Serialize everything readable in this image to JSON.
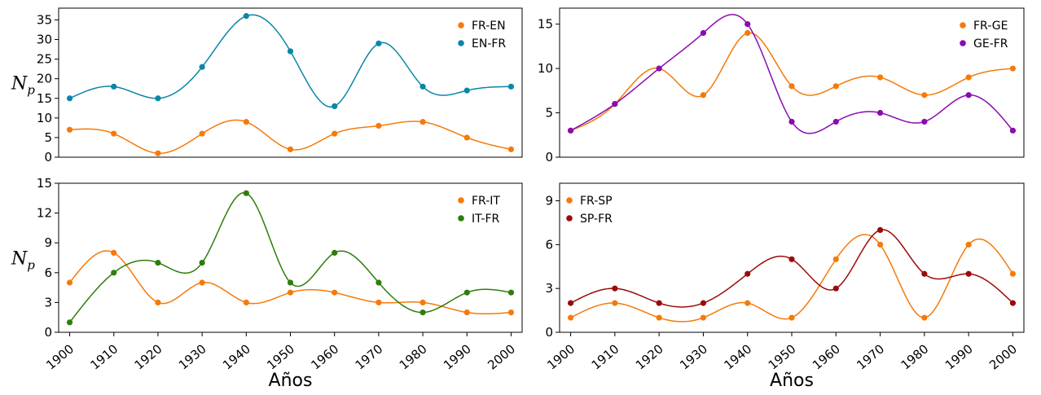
{
  "chart_data": [
    {
      "type": "line",
      "x": [
        1900,
        1910,
        1920,
        1930,
        1940,
        1950,
        1960,
        1970,
        1980,
        1990,
        2000
      ],
      "series": [
        {
          "name": "FR-EN",
          "color": "#f57a0a",
          "values": [
            7,
            6,
            1,
            6,
            9,
            2,
            6,
            8,
            9,
            5,
            2
          ]
        },
        {
          "name": "EN-FR",
          "color": "#0a86a8",
          "values": [
            15,
            18,
            15,
            23,
            36,
            27,
            13,
            29,
            18,
            17,
            18
          ]
        }
      ],
      "yticks": [
        0,
        5,
        10,
        15,
        20,
        25,
        30,
        35
      ],
      "ylim": [
        0,
        38
      ],
      "ylabel": "N",
      "ylabel_sub": "p",
      "legend": "top-right",
      "show_x_ticks": false,
      "xlabel": ""
    },
    {
      "type": "line",
      "x": [
        1900,
        1910,
        1920,
        1930,
        1940,
        1950,
        1960,
        1970,
        1980,
        1990,
        2000
      ],
      "series": [
        {
          "name": "FR-GE",
          "color": "#f57a0a",
          "values": [
            3,
            6,
            10,
            7,
            14,
            8,
            8,
            9,
            7,
            9,
            10
          ]
        },
        {
          "name": "GE-FR",
          "color": "#8a0bb0",
          "values": [
            3,
            6,
            10,
            14,
            15,
            4,
            4,
            5,
            4,
            7,
            3
          ]
        }
      ],
      "yticks": [
        0,
        5,
        10,
        15
      ],
      "ylim": [
        0,
        16.8
      ],
      "ylabel": "",
      "ylabel_sub": "",
      "legend": "top-right",
      "show_x_ticks": false,
      "xlabel": ""
    },
    {
      "type": "line",
      "x": [
        1900,
        1910,
        1920,
        1930,
        1940,
        1950,
        1960,
        1970,
        1980,
        1990,
        2000
      ],
      "series": [
        {
          "name": "FR-IT",
          "color": "#f57a0a",
          "values": [
            5,
            8,
            3,
            5,
            3,
            4,
            4,
            3,
            3,
            2,
            2
          ]
        },
        {
          "name": "IT-FR",
          "color": "#2e7d0a",
          "values": [
            1,
            6,
            7,
            7,
            14,
            5,
            8,
            5,
            2,
            4,
            4
          ]
        }
      ],
      "yticks": [
        0,
        3,
        6,
        9,
        12,
        15
      ],
      "ylim": [
        0,
        15
      ],
      "ylabel": "N",
      "ylabel_sub": "p",
      "legend": "top-right",
      "show_x_ticks": true,
      "xlabel": "Años"
    },
    {
      "type": "line",
      "x": [
        1900,
        1910,
        1920,
        1930,
        1940,
        1950,
        1960,
        1970,
        1980,
        1990,
        2000
      ],
      "series": [
        {
          "name": "FR-SP",
          "color": "#f57a0a",
          "values": [
            1,
            2,
            1,
            1,
            2,
            1,
            5,
            6,
            1,
            6,
            4
          ]
        },
        {
          "name": "SP-FR",
          "color": "#9b0a0a",
          "values": [
            2,
            3,
            2,
            2,
            4,
            5,
            3,
            7,
            4,
            4,
            2
          ]
        }
      ],
      "yticks": [
        0,
        3,
        6,
        9
      ],
      "ylim": [
        0,
        10.2
      ],
      "ylabel": "",
      "ylabel_sub": "",
      "legend": "top-left",
      "show_x_ticks": true,
      "xlabel": "Años"
    }
  ]
}
